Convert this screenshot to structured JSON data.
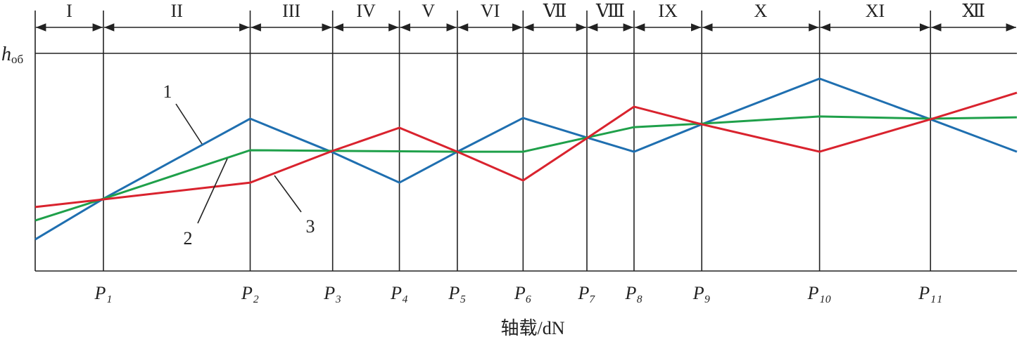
{
  "chart_data": {
    "type": "line",
    "y_label": {
      "symbol": "h",
      "subscript": "об"
    },
    "x_label": "轴载/dN",
    "regions": [
      "I",
      "II",
      "III",
      "IV",
      "V",
      "VI",
      "Ⅶ",
      "Ⅷ",
      "IX",
      "X",
      "XI",
      "Ⅻ"
    ],
    "xlim": [
      0,
      100
    ],
    "ylim": [
      0,
      100
    ],
    "xticks": [
      {
        "value": 6.95,
        "label": "P₁"
      },
      {
        "value": 21.9,
        "label": "P₂"
      },
      {
        "value": 30.3,
        "label": "P₃"
      },
      {
        "value": 37.1,
        "label": "P₄"
      },
      {
        "value": 43.0,
        "label": "P₅"
      },
      {
        "value": 49.7,
        "label": "P₆"
      },
      {
        "value": 56.2,
        "label": "P₇"
      },
      {
        "value": 61.0,
        "label": "P₈"
      },
      {
        "value": 67.9,
        "label": "P₉"
      },
      {
        "value": 79.9,
        "label": "P₁₀"
      },
      {
        "value": 91.2,
        "label": "P₁₁"
      }
    ],
    "x": [
      0,
      6.95,
      21.9,
      30.3,
      37.1,
      43.0,
      49.7,
      56.2,
      61.0,
      67.9,
      79.9,
      91.2,
      100
    ],
    "series": [
      {
        "name": "1",
        "color": "#1f6fb0",
        "values": [
          14.5,
          33.2,
          70,
          54.5,
          40.6,
          54.8,
          70.3,
          61.3,
          54.8,
          67.4,
          88.4,
          69.7,
          54.8
        ]
      },
      {
        "name": "2",
        "color": "#1fa04a",
        "values": [
          23.2,
          33.2,
          55.5,
          55.2,
          55.0,
          54.8,
          54.8,
          61.3,
          66.1,
          67.7,
          71,
          70,
          70.6
        ]
      },
      {
        "name": "3",
        "color": "#d9232e",
        "values": [
          29.4,
          32.9,
          40.6,
          55.2,
          65.8,
          54.8,
          41.6,
          61,
          75.5,
          67.4,
          54.8,
          69.7,
          81.9
        ]
      }
    ]
  }
}
